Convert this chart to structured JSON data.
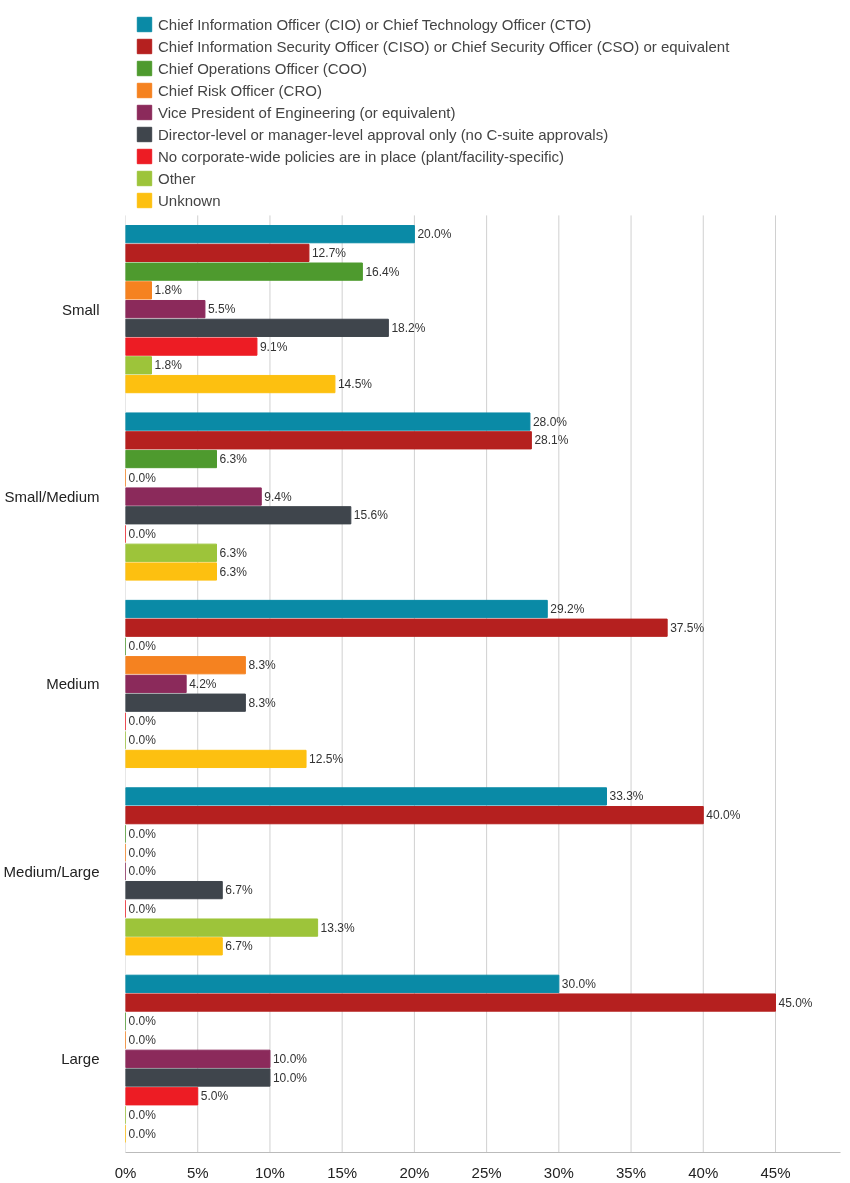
{
  "chart_data": {
    "type": "bar",
    "orientation": "horizontal",
    "categories": [
      "Small",
      "Small/Medium",
      "Medium",
      "Medium/Large",
      "Large"
    ],
    "series": [
      {
        "name": "Chief Information Officer (CIO) or Chief Technology Officer (CTO)",
        "color": "#0a8aa6",
        "values": [
          20.0,
          28.0,
          29.2,
          33.3,
          30.0
        ],
        "value_labels": [
          "20.0%",
          "28.0%",
          "29.2%",
          "33.3%",
          "30.0%"
        ]
      },
      {
        "name": "Chief Information Security Officer (CISO) or Chief Security Officer (CSO) or equivalent",
        "color": "#b5201f",
        "values": [
          12.7,
          28.1,
          37.5,
          40.0,
          45.0
        ],
        "value_labels": [
          "12.7%",
          "28.1%",
          "37.5%",
          "40.0%",
          "45.0%"
        ]
      },
      {
        "name": "Chief Operations Officer (COO)",
        "color": "#4e9a2e",
        "values": [
          16.4,
          6.3,
          0.0,
          0.0,
          0.0
        ],
        "value_labels": [
          "16.4%",
          "6.3%",
          "0.0%",
          "0.0%",
          "0.0%"
        ]
      },
      {
        "name": "Chief Risk Officer (CRO)",
        "color": "#f58220",
        "values": [
          1.8,
          0.0,
          8.3,
          0.0,
          0.0
        ],
        "value_labels": [
          "1.8%",
          "0.0%",
          "8.3%",
          "0.0%",
          "0.0%"
        ]
      },
      {
        "name": "Vice President of Engineering (or equivalent)",
        "color": "#8b2a5b",
        "values": [
          5.5,
          9.4,
          4.2,
          0.0,
          10.0
        ],
        "value_labels": [
          "5.5%",
          "9.4%",
          "4.2%",
          "0.0%",
          "10.0%"
        ]
      },
      {
        "name": "Director-level or manager-level approval only (no C-suite approvals)",
        "color": "#3f454c",
        "values": [
          18.2,
          15.6,
          8.3,
          6.7,
          10.0
        ],
        "value_labels": [
          "18.2%",
          "15.6%",
          "8.3%",
          "6.7%",
          "10.0%"
        ]
      },
      {
        "name": "No corporate-wide policies are in place (plant/facility-specific)",
        "color": "#ed1c24",
        "values": [
          9.1,
          0.0,
          0.0,
          0.0,
          5.0
        ],
        "value_labels": [
          "9.1%",
          "0.0%",
          "0.0%",
          "0.0%",
          "5.0%"
        ]
      },
      {
        "name": "Other",
        "color": "#9dc43a",
        "values": [
          1.8,
          6.3,
          0.0,
          13.3,
          0.0
        ],
        "value_labels": [
          "1.8%",
          "6.3%",
          "0.0%",
          "13.3%",
          "0.0%"
        ]
      },
      {
        "name": "Unknown",
        "color": "#fdc010",
        "values": [
          14.5,
          6.3,
          12.5,
          6.7,
          0.0
        ],
        "value_labels": [
          "14.5%",
          "6.3%",
          "12.5%",
          "6.7%",
          "0.0%"
        ]
      }
    ],
    "xlim": [
      0,
      49.5
    ],
    "xticks": [
      {
        "value": 0,
        "label": "0%"
      },
      {
        "value": 5,
        "label": "5%"
      },
      {
        "value": 10,
        "label": "10%"
      },
      {
        "value": 15,
        "label": "15%"
      },
      {
        "value": 20,
        "label": "20%"
      },
      {
        "value": 25,
        "label": "25%"
      },
      {
        "value": 30,
        "label": "30%"
      },
      {
        "value": 35,
        "label": "35%"
      },
      {
        "value": 40,
        "label": "40%"
      },
      {
        "value": 45,
        "label": "45%"
      }
    ],
    "grid": "x",
    "legend": "top"
  }
}
